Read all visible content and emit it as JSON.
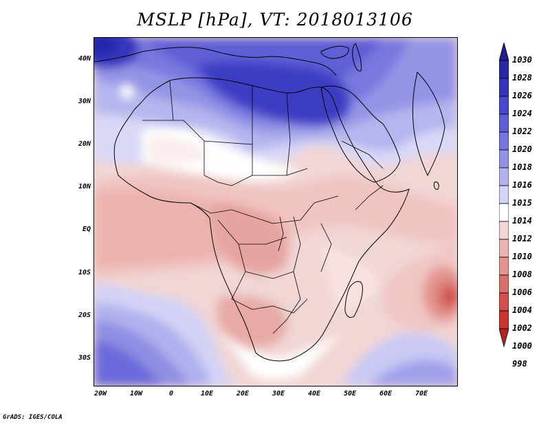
{
  "title": "MSLP [hPa], VT: 2018013106",
  "credit": "GrADS: IGES/COLA",
  "lat_labels": [
    "40N",
    "30N",
    "20N",
    "10N",
    "EQ",
    "10S",
    "20S",
    "30S"
  ],
  "lon_labels": [
    "20W",
    "10W",
    "0",
    "10E",
    "20E",
    "30E",
    "40E",
    "50E",
    "60E",
    "70E"
  ],
  "colorbar": {
    "levels": [
      "1030",
      "1028",
      "1026",
      "1024",
      "1022",
      "1020",
      "1018",
      "1016",
      "1015",
      "1014",
      "1012",
      "1010",
      "1008",
      "1006",
      "1004",
      "1002",
      "1000",
      "998"
    ],
    "colors": [
      "#1f1f8f",
      "#2828a8",
      "#3434bd",
      "#4848cc",
      "#5e5ed6",
      "#7676de",
      "#9292e6",
      "#b2b2ef",
      "#d4d4f7",
      "#ffffff",
      "#f4d7d5",
      "#ebb4b1",
      "#e29490",
      "#d96f6a",
      "#d24f4a",
      "#c8352f",
      "#b42320"
    ]
  },
  "colors": {
    "frame": "#000000",
    "coast": "#000000"
  }
}
